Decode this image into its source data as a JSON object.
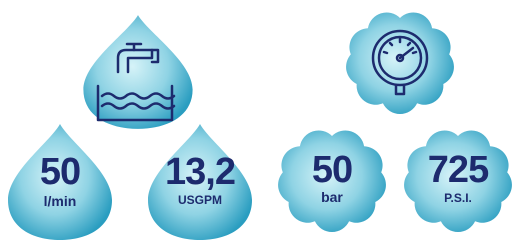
{
  "flow": [
    {
      "number": "50",
      "unit": "l/min"
    },
    {
      "number": "13,2",
      "unit": "USGPM"
    }
  ],
  "pressure": [
    {
      "number": "50",
      "unit": "bar"
    },
    {
      "number": "725",
      "unit": "P.S.I."
    }
  ]
}
